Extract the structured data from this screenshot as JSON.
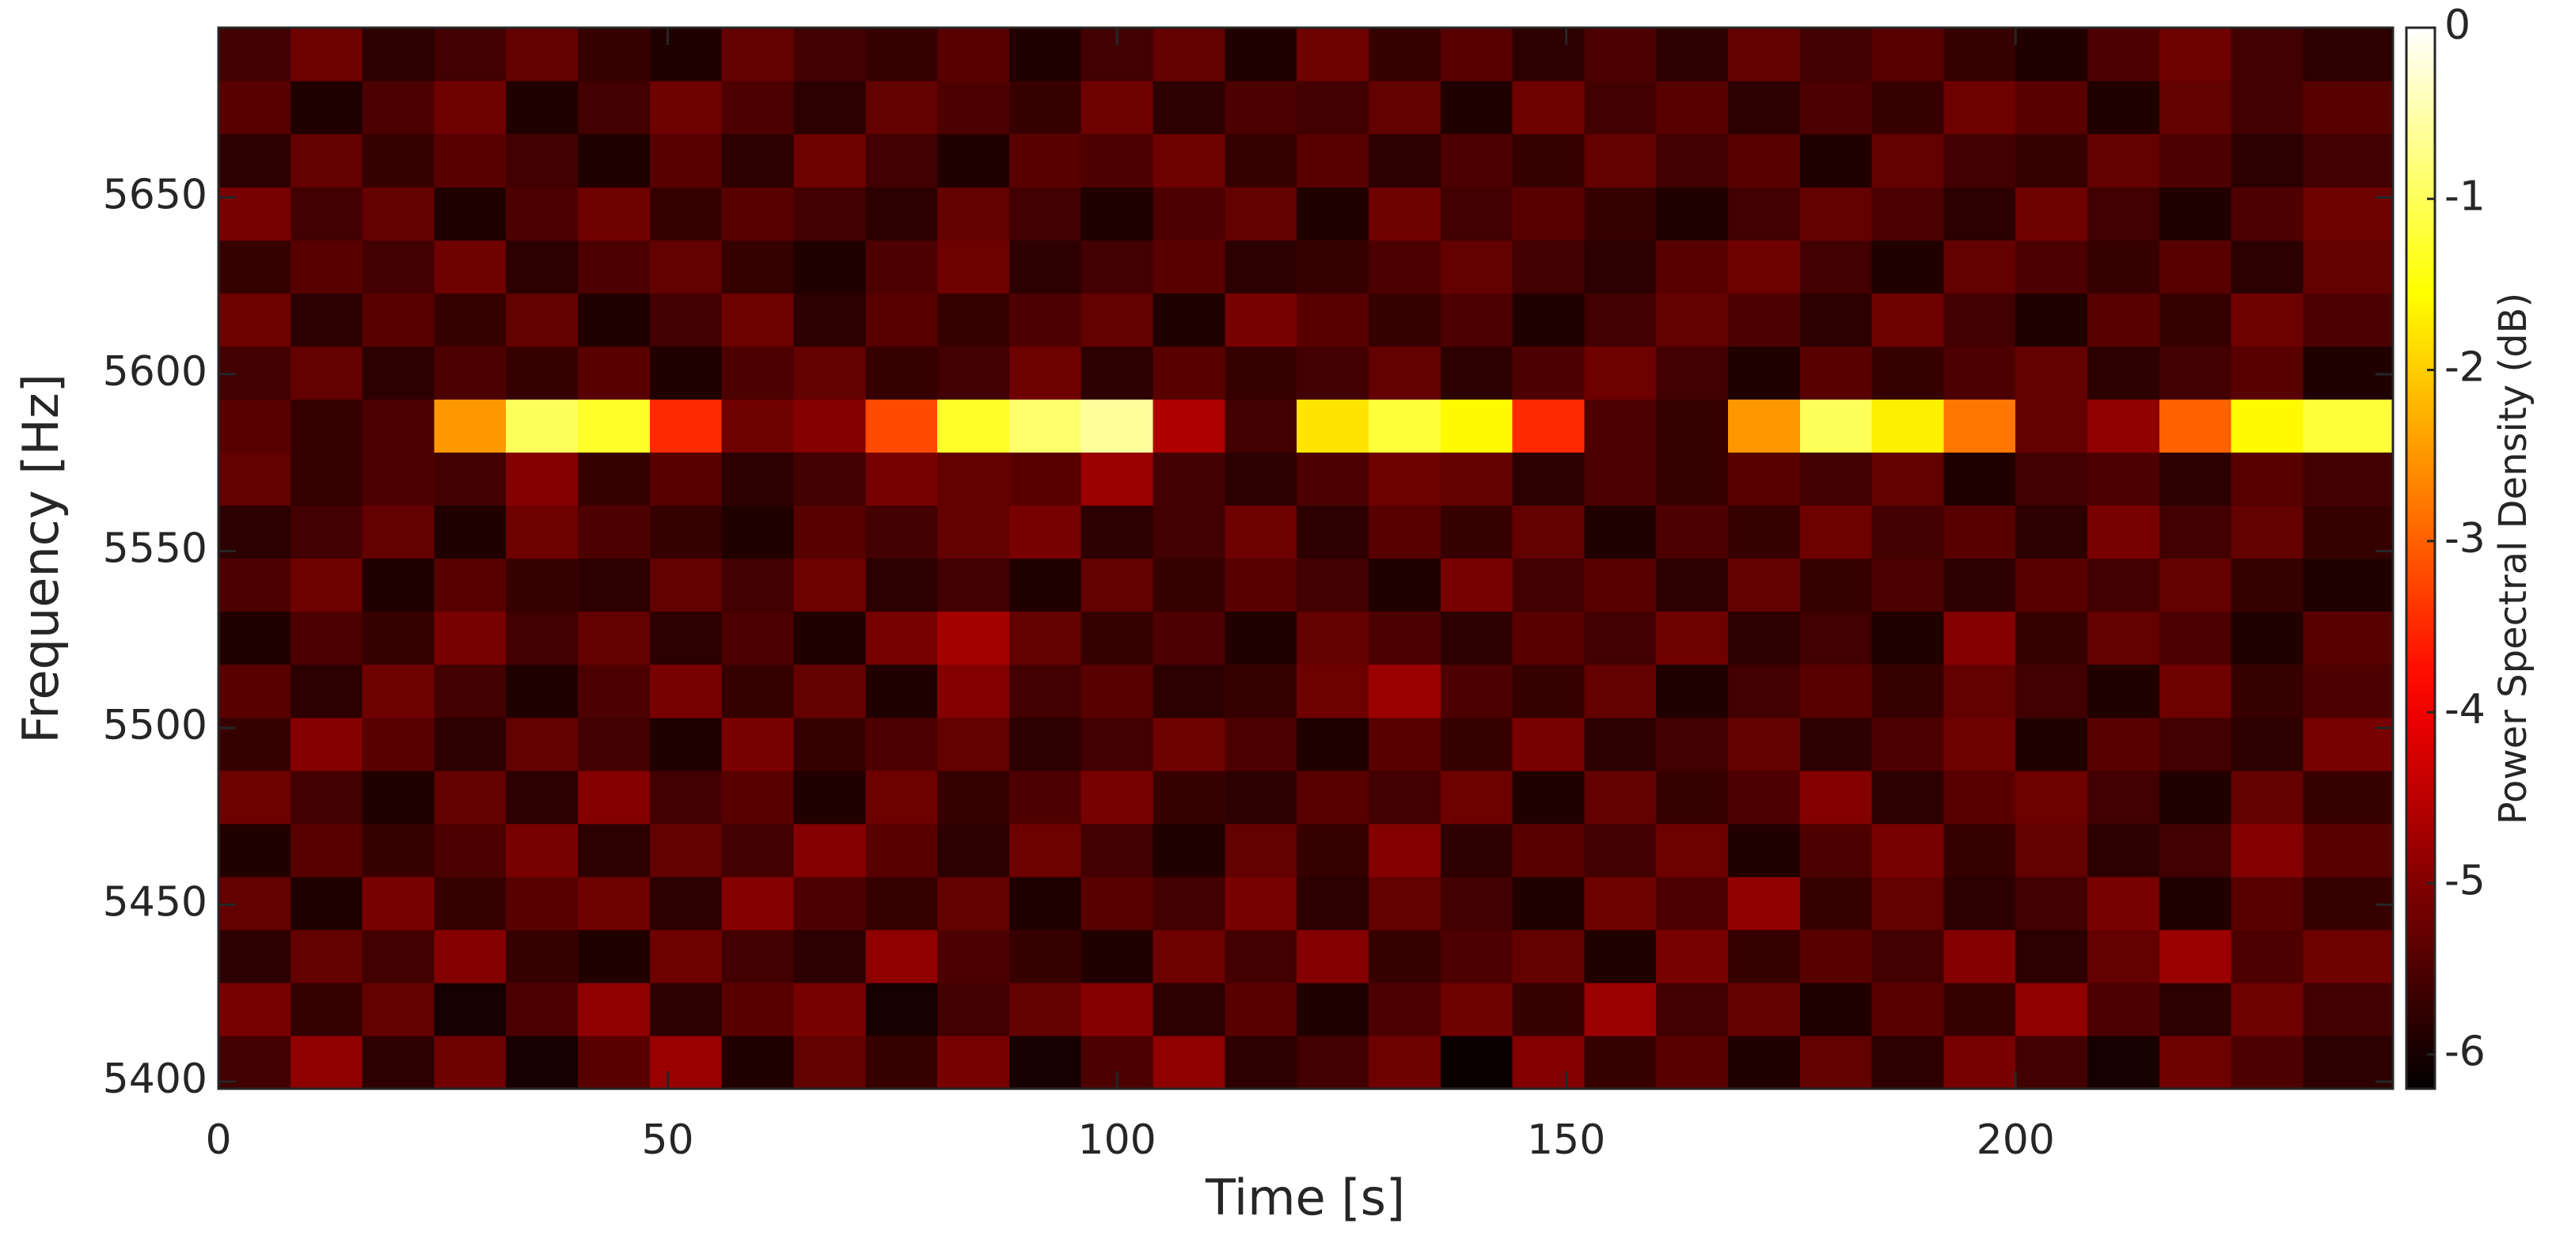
{
  "chart_data": {
    "type": "heatmap",
    "x_label": "Time [s]",
    "y_label": "Frequency [Hz]",
    "colorbar_label": "Power Spectral Density (dB)",
    "colormap": "hot",
    "xlim": [
      0,
      242
    ],
    "ylim": [
      5398,
      5698
    ],
    "clim": [
      -6.2,
      0
    ],
    "xticks": [
      0,
      50,
      100,
      150,
      200
    ],
    "yticks": [
      5400,
      5450,
      5500,
      5550,
      5600,
      5650
    ],
    "cticks": [
      0,
      -1,
      -2,
      -3,
      -4,
      -5,
      -6
    ],
    "x": [
      4,
      12,
      20,
      28,
      36,
      44,
      52,
      60,
      68,
      76,
      84,
      92,
      100,
      108,
      116,
      124,
      132,
      140,
      148,
      156,
      164,
      172,
      180,
      188,
      196,
      204,
      212,
      220,
      228,
      236
    ],
    "y": [
      5405.5,
      5420.5,
      5435.5,
      5450.5,
      5465.5,
      5480.5,
      5495.5,
      5510.5,
      5525.5,
      5540.5,
      5555.5,
      5570.5,
      5585.5,
      5600.5,
      5615.5,
      5630.5,
      5645.5,
      5660.5,
      5675.5,
      5690.5
    ],
    "z": [
      [
        -5.6,
        -4.9,
        -5.8,
        -5.2,
        -6.0,
        -5.4,
        -4.8,
        -5.9,
        -5.3,
        -5.7,
        -5.1,
        -6.0,
        -5.5,
        -4.9,
        -5.8,
        -5.6,
        -5.2,
        -6.1,
        -5.0,
        -5.7,
        -5.4,
        -5.9,
        -5.3,
        -5.8,
        -5.1,
        -5.6,
        -6.0,
        -5.2,
        -5.5,
        -5.8
      ],
      [
        -5.1,
        -5.7,
        -5.3,
        -6.0,
        -5.5,
        -4.9,
        -5.8,
        -5.4,
        -5.1,
        -6.0,
        -5.6,
        -5.3,
        -5.0,
        -5.8,
        -5.4,
        -5.9,
        -5.5,
        -5.2,
        -5.7,
        -4.8,
        -5.6,
        -5.3,
        -5.9,
        -5.4,
        -5.7,
        -4.9,
        -5.5,
        -5.8,
        -5.2,
        -5.6
      ],
      [
        -5.8,
        -5.3,
        -5.6,
        -5.0,
        -5.7,
        -5.9,
        -5.2,
        -5.6,
        -5.8,
        -4.9,
        -5.5,
        -5.7,
        -5.9,
        -5.2,
        -5.6,
        -5.0,
        -5.7,
        -5.5,
        -5.3,
        -5.9,
        -5.1,
        -5.7,
        -5.4,
        -5.6,
        -5.0,
        -5.8,
        -5.3,
        -4.8,
        -5.5,
        -5.2
      ],
      [
        -5.3,
        -5.9,
        -5.1,
        -5.7,
        -5.4,
        -5.2,
        -5.8,
        -5.0,
        -5.5,
        -5.7,
        -5.3,
        -5.9,
        -5.4,
        -5.6,
        -5.1,
        -5.8,
        -5.3,
        -5.6,
        -5.9,
        -5.2,
        -5.5,
        -4.9,
        -5.7,
        -5.3,
        -5.8,
        -5.6,
        -5.1,
        -5.9,
        -5.4,
        -5.7
      ],
      [
        -5.9,
        -5.4,
        -5.7,
        -5.5,
        -5.1,
        -5.8,
        -5.3,
        -5.6,
        -5.0,
        -5.4,
        -5.8,
        -5.2,
        -5.6,
        -5.9,
        -5.3,
        -5.7,
        -5.0,
        -5.8,
        -5.4,
        -5.6,
        -5.2,
        -5.9,
        -5.5,
        -5.1,
        -5.7,
        -5.3,
        -5.8,
        -5.6,
        -5.0,
        -5.4
      ],
      [
        -5.2,
        -5.6,
        -5.9,
        -5.3,
        -5.8,
        -5.0,
        -5.6,
        -5.4,
        -5.9,
        -5.2,
        -5.7,
        -5.5,
        -5.1,
        -5.7,
        -5.8,
        -5.4,
        -5.6,
        -5.2,
        -5.9,
        -5.3,
        -5.7,
        -5.5,
        -5.0,
        -5.8,
        -5.4,
        -5.2,
        -5.6,
        -5.9,
        -5.3,
        -5.7
      ],
      [
        -5.7,
        -5.0,
        -5.4,
        -5.8,
        -5.3,
        -5.6,
        -5.9,
        -5.1,
        -5.7,
        -5.5,
        -5.3,
        -5.8,
        -5.6,
        -5.2,
        -5.5,
        -5.9,
        -5.4,
        -5.7,
        -5.1,
        -5.8,
        -5.6,
        -5.3,
        -5.8,
        -5.5,
        -5.2,
        -5.9,
        -5.4,
        -5.6,
        -5.8,
        -5.1
      ],
      [
        -5.4,
        -5.8,
        -5.2,
        -5.6,
        -5.9,
        -5.5,
        -5.1,
        -5.7,
        -5.3,
        -5.9,
        -5.0,
        -5.6,
        -5.4,
        -5.8,
        -5.7,
        -5.2,
        -4.8,
        -5.5,
        -5.7,
        -5.3,
        -5.9,
        -5.6,
        -5.4,
        -5.7,
        -5.3,
        -5.6,
        -5.9,
        -5.2,
        -5.7,
        -5.5
      ],
      [
        -5.9,
        -5.5,
        -5.7,
        -5.1,
        -5.6,
        -5.3,
        -5.8,
        -5.5,
        -5.9,
        -5.1,
        -4.7,
        -5.3,
        -5.7,
        -5.5,
        -5.9,
        -5.3,
        -5.5,
        -5.8,
        -5.4,
        -5.6,
        -5.2,
        -5.8,
        -5.6,
        -5.9,
        -5.0,
        -5.7,
        -5.3,
        -5.5,
        -5.9,
        -5.4
      ],
      [
        -5.5,
        -5.2,
        -5.9,
        -5.4,
        -5.7,
        -5.8,
        -5.3,
        -5.6,
        -5.2,
        -5.8,
        -5.6,
        -5.9,
        -5.3,
        -5.7,
        -5.4,
        -5.6,
        -5.9,
        -5.1,
        -5.6,
        -5.4,
        -5.8,
        -5.3,
        -5.7,
        -5.5,
        -5.8,
        -5.4,
        -5.6,
        -5.3,
        -5.7,
        -5.9
      ],
      [
        -5.8,
        -5.6,
        -5.3,
        -5.9,
        -5.2,
        -5.5,
        -5.7,
        -5.9,
        -5.4,
        -5.6,
        -5.3,
        -5.1,
        -5.8,
        -5.6,
        -5.2,
        -5.8,
        -5.4,
        -5.7,
        -5.3,
        -5.9,
        -5.5,
        -5.7,
        -5.2,
        -5.6,
        -5.4,
        -5.8,
        -5.1,
        -5.6,
        -5.3,
        -5.7
      ],
      [
        -5.3,
        -5.7,
        -5.5,
        -5.6,
        -5.0,
        -5.7,
        -5.4,
        -5.8,
        -5.6,
        -5.1,
        -5.3,
        -5.4,
        -4.8,
        -5.6,
        -5.8,
        -5.5,
        -5.2,
        -5.3,
        -5.8,
        -5.5,
        -5.7,
        -5.4,
        -5.6,
        -5.3,
        -5.9,
        -5.6,
        -5.5,
        -5.8,
        -5.4,
        -5.6
      ],
      [
        -5.4,
        -5.7,
        -5.5,
        -2.5,
        -1.0,
        -1.3,
        -3.5,
        -5.2,
        -5.0,
        -3.2,
        -1.3,
        -0.9,
        -0.6,
        -4.6,
        -5.6,
        -1.8,
        -1.2,
        -1.6,
        -3.5,
        -5.5,
        -5.7,
        -2.5,
        -1.0,
        -1.7,
        -2.8,
        -5.3,
        -4.9,
        -3.0,
        -1.6,
        -1.2
      ],
      [
        -5.6,
        -5.3,
        -5.8,
        -5.5,
        -5.7,
        -5.4,
        -5.9,
        -5.5,
        -5.3,
        -5.7,
        -5.6,
        -5.2,
        -5.8,
        -5.4,
        -5.7,
        -5.6,
        -5.3,
        -5.8,
        -5.5,
        -5.2,
        -5.6,
        -5.9,
        -5.4,
        -5.7,
        -5.5,
        -5.3,
        -5.8,
        -5.6,
        -5.4,
        -5.9
      ],
      [
        -5.2,
        -5.8,
        -5.4,
        -5.7,
        -5.3,
        -5.9,
        -5.6,
        -5.2,
        -5.8,
        -5.4,
        -5.7,
        -5.5,
        -5.3,
        -5.9,
        -5.1,
        -5.4,
        -5.7,
        -5.5,
        -5.9,
        -5.6,
        -5.3,
        -5.5,
        -5.8,
        -5.2,
        -5.6,
        -5.9,
        -5.4,
        -5.7,
        -5.2,
        -5.5
      ],
      [
        -5.7,
        -5.4,
        -5.6,
        -5.2,
        -5.8,
        -5.5,
        -5.3,
        -5.7,
        -5.9,
        -5.5,
        -5.2,
        -5.8,
        -5.6,
        -5.4,
        -5.8,
        -5.7,
        -5.5,
        -5.3,
        -5.6,
        -5.8,
        -5.4,
        -5.2,
        -5.6,
        -5.9,
        -5.3,
        -5.5,
        -5.7,
        -5.4,
        -5.8,
        -5.3
      ],
      [
        -5.1,
        -5.6,
        -5.3,
        -5.9,
        -5.5,
        -5.2,
        -5.7,
        -5.4,
        -5.6,
        -5.8,
        -5.3,
        -5.6,
        -5.9,
        -5.5,
        -5.3,
        -5.9,
        -5.2,
        -5.6,
        -5.4,
        -5.7,
        -5.9,
        -5.6,
        -5.3,
        -5.5,
        -5.8,
        -5.2,
        -5.6,
        -5.9,
        -5.5,
        -5.2
      ],
      [
        -5.8,
        -5.3,
        -5.7,
        -5.4,
        -5.6,
        -5.9,
        -5.4,
        -5.8,
        -5.2,
        -5.6,
        -5.9,
        -5.4,
        -5.5,
        -5.2,
        -5.7,
        -5.4,
        -5.8,
        -5.5,
        -5.7,
        -5.3,
        -5.6,
        -5.4,
        -5.9,
        -5.3,
        -5.6,
        -5.7,
        -5.3,
        -5.5,
        -5.8,
        -5.6
      ],
      [
        -5.4,
        -5.9,
        -5.5,
        -5.2,
        -5.9,
        -5.6,
        -5.2,
        -5.5,
        -5.8,
        -5.3,
        -5.5,
        -5.7,
        -5.2,
        -5.8,
        -5.5,
        -5.6,
        -5.3,
        -5.9,
        -5.2,
        -5.6,
        -5.4,
        -5.8,
        -5.5,
        -5.7,
        -5.2,
        -5.4,
        -5.9,
        -5.3,
        -5.6,
        -5.4
      ],
      [
        -5.6,
        -5.2,
        -5.8,
        -5.6,
        -5.3,
        -5.7,
        -5.9,
        -5.3,
        -5.6,
        -5.7,
        -5.4,
        -5.9,
        -5.6,
        -5.3,
        -5.9,
        -5.2,
        -5.7,
        -5.4,
        -5.8,
        -5.5,
        -5.8,
        -5.3,
        -5.6,
        -5.4,
        -5.7,
        -5.9,
        -5.5,
        -5.2,
        -5.6,
        -5.8
      ]
    ]
  }
}
